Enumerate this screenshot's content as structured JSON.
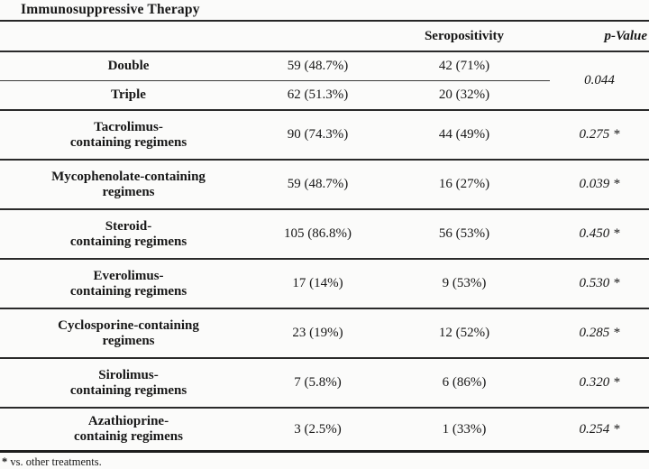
{
  "title": "Immunosuppressive Therapy",
  "header": {
    "seropositivity": "Seropositivity",
    "p_value": "p-Value"
  },
  "grouped": {
    "rows": [
      {
        "label": "Double",
        "n": "59 (48.7%)",
        "sero": "42 (71%)"
      },
      {
        "label": "Triple",
        "n": "62 (51.3%)",
        "sero": "20 (32%)"
      }
    ],
    "p": "0.044"
  },
  "regimens": [
    {
      "label_line1": "Tacrolimus-",
      "label_line2": "containing regimens",
      "n": "90 (74.3%)",
      "sero": "44 (49%)",
      "p": "0.275 *"
    },
    {
      "label_line1": "Mycophenolate-containing",
      "label_line2": "regimens",
      "n": "59 (48.7%)",
      "sero": "16 (27%)",
      "p": "0.039 *"
    },
    {
      "label_line1": "Steroid-",
      "label_line2": "containing regimens",
      "n": "105 (86.8%)",
      "sero": "56 (53%)",
      "p": "0.450 *"
    },
    {
      "label_line1": "Everolimus-",
      "label_line2": "containing regimens",
      "n": "17 (14%)",
      "sero": "9 (53%)",
      "p": "0.530 *"
    },
    {
      "label_line1": "Cyclosporine-containing",
      "label_line2": "regimens",
      "n": "23 (19%)",
      "sero": "12 (52%)",
      "p": "0.285 *"
    },
    {
      "label_line1": "Sirolimus-",
      "label_line2": "containing regimens",
      "n": "7 (5.8%)",
      "sero": "6 (86%)",
      "p": "0.320 *"
    },
    {
      "label_line1": "Azathioprine-",
      "label_line2": "containig regimens",
      "n": "3 (2.5%)",
      "sero": "1 (33%)",
      "p": "0.254 *"
    }
  ],
  "footnote": {
    "marker": "*",
    "text": "vs. other treatments."
  }
}
